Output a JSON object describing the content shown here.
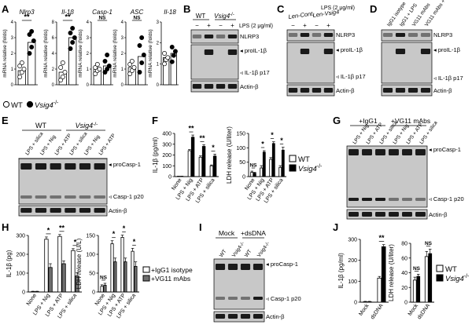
{
  "panel_letters": [
    "A",
    "B",
    "C",
    "D",
    "E",
    "F",
    "G",
    "H",
    "I",
    "J"
  ],
  "legend": {
    "wt": "WT",
    "ko": "Vsig4",
    "ko_sup": "-/-",
    "igg": "+IgG1 isotype",
    "vg11": "+VG11 mAbs"
  },
  "colors": {
    "black": "#000000",
    "white": "#ffffff",
    "gray": "#6e6e6e",
    "blot_bg": "#c8c8c8"
  },
  "sig": {
    "two": "**",
    "one": "*",
    "ns": "NS"
  },
  "blots": {
    "B": {
      "header_wt": "WT",
      "header_ko": "Vsig4",
      "header_ko_sup": "-/-",
      "lps_row": "LPS (2 μg/ml)",
      "signs": [
        "−",
        "+",
        "−",
        "+"
      ],
      "bands": [
        "NLRP3",
        "proIL-1β",
        "IL-1β p17",
        "Actin-β"
      ]
    },
    "C": {
      "header_cont": "Len-Cont.",
      "header_vsig": "Len-Vsig4",
      "lps_row": "LPS (2 μg/ml)",
      "signs": [
        "−",
        "+",
        "−",
        "+"
      ],
      "bands": [
        "NLRP3",
        "proIL-1β",
        "IL-1β p17",
        "Actin-β"
      ]
    },
    "D": {
      "lanes": [
        "IgG1 isotype",
        "IgG1 + LPS",
        "VG11 mAbs",
        "VG11 mAbs + LPS"
      ],
      "bands": [
        "NLRP3",
        "proIL-1β",
        "IL-1β p17",
        "Actin-β"
      ]
    },
    "E": {
      "group_wt": "WT",
      "group_ko": "Vsig4",
      "group_ko_sup": "-/-",
      "lanes": [
        "LPS + silica",
        "LPS + Nig",
        "LPS + ATP",
        "LPS + silica",
        "LPS + Nig",
        "LPS + ATP"
      ],
      "bands": [
        "proCasp-1",
        "Casp-1 p20",
        "Actin-β"
      ]
    },
    "G": {
      "group_a": "+IgG1",
      "group_b": "+VG11 mAbs",
      "lanes": [
        "LPS + Nig",
        "LPS + ATP",
        "LPS + silica",
        "LPS + Nig",
        "LPS + ATP",
        "LPS + silica"
      ],
      "bands": [
        "proCasp-1",
        "Casp-1 p20",
        "Actin-β"
      ]
    },
    "I": {
      "group_a": "Mock",
      "group_b": "+dsDNA",
      "lanes": [
        "WT",
        "Vsig4-/-",
        "WT",
        "Vsig4-/-"
      ],
      "bands": [
        "proCasp-1",
        "Casp-1 p20",
        "Actin-β"
      ]
    }
  },
  "chart_data": [
    {
      "panel": "A",
      "type": "bar",
      "title": "Nlrp3",
      "ylabel": "mRNA relative (folds)",
      "ylim": [
        0,
        4
      ],
      "yticks": [
        0,
        1,
        2,
        3,
        4
      ],
      "categories": [
        "WT",
        "Vsig4-/-"
      ],
      "values": [
        0.9,
        2.7
      ],
      "sig": "**",
      "points": [
        [
          0.5,
          0.8,
          1.0,
          1.2,
          1.4
        ],
        [
          2.0,
          2.4,
          2.8,
          3.2,
          3.4
        ]
      ]
    },
    {
      "panel": "A",
      "type": "bar",
      "title": "Il-1β",
      "ylabel": "mRNA relative (folds)",
      "ylim": [
        0,
        8
      ],
      "yticks": [
        0,
        2,
        4,
        6,
        8
      ],
      "categories": [
        "WT",
        "Vsig4-/-"
      ],
      "values": [
        1.6,
        6.0
      ],
      "sig": "**",
      "points": [
        [
          0.6,
          1.0,
          1.6,
          2.2,
          2.8
        ],
        [
          4.6,
          5.4,
          6.0,
          6.6,
          7.2
        ]
      ]
    },
    {
      "panel": "A",
      "type": "bar",
      "title": "Casp-1",
      "ylabel": "mRNA relative (folds)",
      "ylim": [
        0,
        4
      ],
      "yticks": [
        0,
        1,
        2,
        3,
        4
      ],
      "categories": [
        "WT",
        "Vsig4-/-"
      ],
      "values": [
        1.0,
        1.2
      ],
      "sig": "NS",
      "points": [
        [
          0.7,
          0.9,
          1.0,
          1.1,
          1.3
        ],
        [
          0.8,
          1.0,
          1.2,
          1.5,
          1.9
        ]
      ]
    },
    {
      "panel": "A",
      "type": "bar",
      "title": "ASC",
      "ylabel": "mRNA relative (folds)",
      "ylim": [
        0,
        4
      ],
      "yticks": [
        0,
        1,
        2,
        3,
        4
      ],
      "categories": [
        "WT",
        "Vsig4-/-"
      ],
      "values": [
        1.1,
        1.8
      ],
      "sig": "NS",
      "points": [
        [
          0.7,
          0.9,
          1.1,
          1.3,
          1.5
        ],
        [
          0.8,
          1.4,
          1.9,
          2.5,
          3.0
        ]
      ]
    },
    {
      "panel": "A",
      "type": "bar",
      "title": "Il-18",
      "ylabel": "mRNA relative (folds)",
      "ylim": [
        0,
        3
      ],
      "yticks": [
        0,
        1,
        2,
        3
      ],
      "categories": [
        "WT",
        "Vsig4-/-"
      ],
      "values": [
        1.3,
        1.5
      ],
      "sig": "",
      "points": [
        [
          1.0,
          1.2,
          1.3,
          1.5
        ],
        [
          1.1,
          1.4,
          1.6,
          1.8
        ]
      ]
    },
    {
      "panel": "F",
      "type": "bar",
      "ylabel": "IL-1β (pg/ml)",
      "ylim": [
        0,
        400
      ],
      "yticks": [
        0,
        100,
        200,
        300,
        400
      ],
      "categories": [
        "None",
        "LPS + Nig",
        "LPS + ATP",
        "LPS + silica"
      ],
      "series": [
        {
          "name": "WT",
          "values": [
            2,
            240,
            180,
            100
          ],
          "errors": [
            2,
            10,
            12,
            8
          ]
        },
        {
          "name": "Vsig4-/-",
          "values": [
            2,
            365,
            280,
            190
          ],
          "errors": [
            2,
            20,
            15,
            18
          ]
        }
      ],
      "sig": [
        "",
        "**",
        "**",
        "*"
      ]
    },
    {
      "panel": "F",
      "type": "bar",
      "ylabel": "LDH release (U/liter)",
      "ylim": [
        0,
        150
      ],
      "yticks": [
        0,
        50,
        100,
        150
      ],
      "categories": [
        "None",
        "LPS + Nig",
        "LPS + ATP",
        "LPS + silica"
      ],
      "series": [
        {
          "name": "WT",
          "values": [
            15,
            30,
            60,
            32
          ],
          "errors": [
            4,
            8,
            6,
            6
          ]
        },
        {
          "name": "Vsig4-/-",
          "values": [
            12,
            85,
            115,
            92
          ],
          "errors": [
            3,
            5,
            6,
            10
          ]
        }
      ],
      "sig": [
        "NS",
        "*",
        "*",
        "*"
      ]
    },
    {
      "panel": "H",
      "type": "bar",
      "ylabel": "IL-1β (pg)",
      "ylim": [
        0,
        300
      ],
      "yticks": [
        0,
        100,
        200,
        300
      ],
      "categories": [
        "None",
        "LPS + Nig",
        "LPS + ATP",
        "LPS + silica"
      ],
      "series": [
        {
          "name": "+IgG1 isotype",
          "values": [
            2,
            280,
            295,
            220
          ],
          "errors": [
            2,
            12,
            10,
            10
          ]
        },
        {
          "name": "+VG11 mAbs",
          "values": [
            2,
            130,
            150,
            85
          ],
          "errors": [
            2,
            20,
            15,
            18
          ]
        }
      ],
      "sig": [
        "",
        "*",
        "**",
        "*"
      ]
    },
    {
      "panel": "H",
      "type": "bar",
      "ylabel": "LDH release (U/L)",
      "ylim": [
        0,
        150
      ],
      "yticks": [
        0,
        50,
        100,
        150
      ],
      "categories": [
        "None",
        "LPS + Nig",
        "LPS + ATP",
        "LPS + silica"
      ],
      "series": [
        {
          "name": "+IgG1 isotype",
          "values": [
            15,
            128,
            145,
            108
          ],
          "errors": [
            4,
            8,
            6,
            8
          ]
        },
        {
          "name": "+VG11 mAbs",
          "values": [
            18,
            80,
            80,
            68
          ],
          "errors": [
            5,
            10,
            10,
            12
          ]
        }
      ],
      "sig": [
        "NS",
        "*",
        "*",
        "*"
      ]
    },
    {
      "panel": "J",
      "type": "bar",
      "ylabel": "IL-1β (pg/ml)",
      "ylim": [
        0,
        300
      ],
      "yticks": [
        0,
        100,
        200,
        300
      ],
      "categories": [
        "Mock",
        "dsDNA"
      ],
      "series": [
        {
          "name": "WT",
          "values": [
            2,
            115
          ],
          "errors": [
            2,
            8
          ]
        },
        {
          "name": "Vsig4-/-",
          "values": [
            2,
            265
          ],
          "errors": [
            2,
            10
          ]
        }
      ],
      "sig": [
        "",
        "**"
      ]
    },
    {
      "panel": "J",
      "type": "bar",
      "ylabel": "LDH release (U/liter)",
      "ylim": [
        0,
        80
      ],
      "yticks": [
        0,
        20,
        40,
        60,
        80
      ],
      "categories": [
        "Mock",
        "dsDNA"
      ],
      "series": [
        {
          "name": "WT",
          "values": [
            30,
            62
          ],
          "errors": [
            4,
            7
          ]
        },
        {
          "name": "Vsig4-/-",
          "values": [
            35,
            66
          ],
          "errors": [
            3,
            6
          ]
        }
      ],
      "sig": [
        "NS",
        "NS"
      ]
    }
  ]
}
